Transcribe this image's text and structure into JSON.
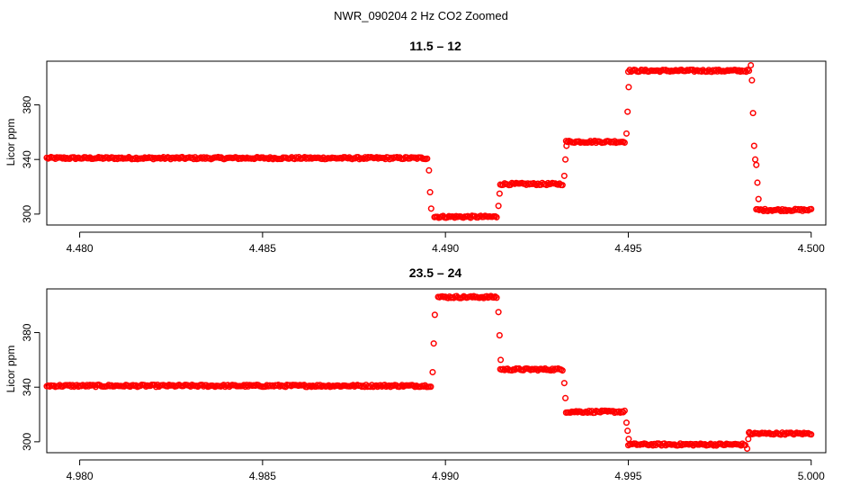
{
  "figure": {
    "title": "NWR_090204  2 Hz CO2 Zoomed"
  },
  "chart_data": [
    {
      "type": "scatter",
      "title": "11.5 – 12",
      "xlabel": "",
      "ylabel": "Licor ppm",
      "xlim": [
        4.4791,
        4.5004
      ],
      "ylim": [
        292,
        412
      ],
      "xticks": [
        4.48,
        4.485,
        4.49,
        4.495,
        4.5
      ],
      "xtick_labels": [
        "4.480",
        "4.485",
        "4.490",
        "4.495",
        "4.500"
      ],
      "yticks": [
        300,
        340,
        380
      ],
      "ytick_labels": [
        "300",
        "340",
        "380"
      ],
      "marker_color": "#ff0000",
      "plateaus": [
        {
          "x_start": 4.4791,
          "x_end": 4.4895,
          "y": 341
        },
        {
          "x_start": 4.4897,
          "x_end": 4.4914,
          "y": 298
        },
        {
          "x_start": 4.4915,
          "x_end": 4.4932,
          "y": 322
        },
        {
          "x_start": 4.4933,
          "x_end": 4.4949,
          "y": 353
        },
        {
          "x_start": 4.495,
          "x_end": 4.4983,
          "y": 405
        },
        {
          "x_start": 4.4985,
          "x_end": 4.5,
          "y": 303
        }
      ],
      "transition_points": [
        {
          "x": 4.48955,
          "y": 332
        },
        {
          "x": 4.48958,
          "y": 316
        },
        {
          "x": 4.48961,
          "y": 304
        },
        {
          "x": 4.49145,
          "y": 306
        },
        {
          "x": 4.49148,
          "y": 315
        },
        {
          "x": 4.49325,
          "y": 328
        },
        {
          "x": 4.49328,
          "y": 340
        },
        {
          "x": 4.49331,
          "y": 350
        },
        {
          "x": 4.49495,
          "y": 359
        },
        {
          "x": 4.49498,
          "y": 375
        },
        {
          "x": 4.49501,
          "y": 393
        },
        {
          "x": 4.49835,
          "y": 409
        },
        {
          "x": 4.49838,
          "y": 398
        },
        {
          "x": 4.49841,
          "y": 374
        },
        {
          "x": 4.49844,
          "y": 350
        },
        {
          "x": 4.49847,
          "y": 340
        },
        {
          "x": 4.4985,
          "y": 336
        },
        {
          "x": 4.49853,
          "y": 323
        },
        {
          "x": 4.49856,
          "y": 311
        }
      ]
    },
    {
      "type": "scatter",
      "title": "23.5 – 24",
      "xlabel": "",
      "ylabel": "Licor ppm",
      "xlim": [
        4.9791,
        5.0004
      ],
      "ylim": [
        292,
        412
      ],
      "xticks": [
        4.98,
        4.985,
        4.99,
        4.995,
        5.0
      ],
      "xtick_labels": [
        "4.980",
        "4.985",
        "4.990",
        "4.995",
        "5.000"
      ],
      "yticks": [
        300,
        340,
        380
      ],
      "ytick_labels": [
        "300",
        "340",
        "380"
      ],
      "marker_color": "#ff0000",
      "plateaus": [
        {
          "x_start": 4.9791,
          "x_end": 4.9896,
          "y": 341
        },
        {
          "x_start": 4.9898,
          "x_end": 4.9914,
          "y": 406
        },
        {
          "x_start": 4.9915,
          "x_end": 4.9932,
          "y": 353
        },
        {
          "x_start": 4.9933,
          "x_end": 4.9949,
          "y": 322
        },
        {
          "x_start": 4.995,
          "x_end": 4.9982,
          "y": 298
        },
        {
          "x_start": 4.9983,
          "x_end": 5.0,
          "y": 306
        }
      ],
      "transition_points": [
        {
          "x": 4.98965,
          "y": 351
        },
        {
          "x": 4.98968,
          "y": 372
        },
        {
          "x": 4.98971,
          "y": 393
        },
        {
          "x": 4.99145,
          "y": 395
        },
        {
          "x": 4.99148,
          "y": 378
        },
        {
          "x": 4.99151,
          "y": 360
        },
        {
          "x": 4.99325,
          "y": 343
        },
        {
          "x": 4.99328,
          "y": 332
        },
        {
          "x": 4.99495,
          "y": 314
        },
        {
          "x": 4.99498,
          "y": 308
        },
        {
          "x": 4.99501,
          "y": 302
        },
        {
          "x": 4.99825,
          "y": 295
        },
        {
          "x": 4.99828,
          "y": 302
        },
        {
          "x": 4.99831,
          "y": 307
        }
      ]
    }
  ]
}
